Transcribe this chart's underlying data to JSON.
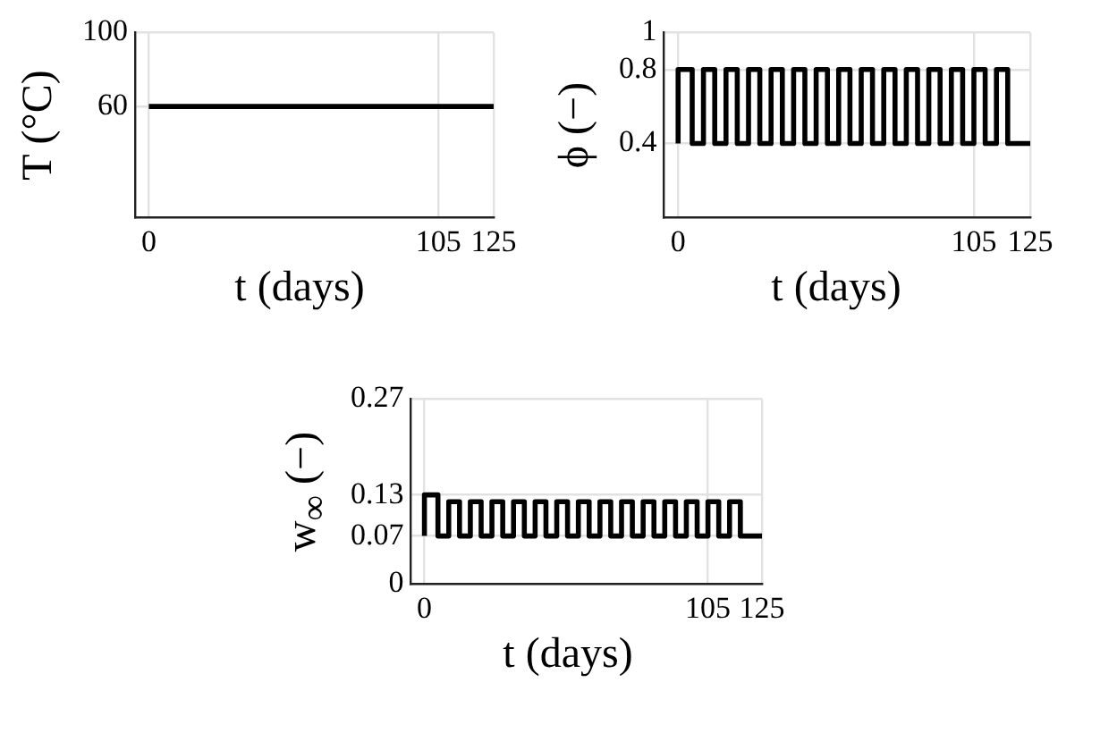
{
  "chart_data": [
    {
      "type": "line",
      "xlabel": "t (days)",
      "ylabel": "T (°C)",
      "x": [
        0,
        125
      ],
      "series": [
        {
          "color": "#000000",
          "values": [
            60,
            60
          ]
        }
      ],
      "xlim": [
        -5,
        125
      ],
      "xticks": [
        0,
        105,
        125
      ],
      "ylim": [
        0,
        100
      ],
      "yticks": [
        60,
        100
      ],
      "grid": true,
      "legend": false
    },
    {
      "type": "step",
      "xlabel": "t (days)",
      "ylabel": "ϕ (−)",
      "x": [
        0,
        5,
        9,
        13,
        17,
        21,
        25,
        29,
        33,
        37,
        41,
        45,
        49,
        53,
        57,
        61,
        65,
        69,
        73,
        77,
        81,
        85,
        89,
        93,
        97,
        101,
        105,
        109,
        113,
        117,
        121,
        125
      ],
      "series": [
        {
          "color": "#000000",
          "values": [
            0.4,
            0.8,
            0.4,
            0.8,
            0.4,
            0.8,
            0.4,
            0.8,
            0.4,
            0.8,
            0.4,
            0.8,
            0.4,
            0.8,
            0.4,
            0.8,
            0.4,
            0.8,
            0.4,
            0.8,
            0.4,
            0.8,
            0.4,
            0.8,
            0.4,
            0.8,
            0.4,
            0.8,
            0.4,
            0.8,
            0.4,
            0.4
          ]
        }
      ],
      "xlim": [
        -5,
        125
      ],
      "xticks": [
        0,
        105,
        125
      ],
      "ylim": [
        0,
        1
      ],
      "yticks": [
        0.4,
        0.8,
        1
      ],
      "grid": true,
      "legend": false
    },
    {
      "type": "step",
      "xlabel": "t (days)",
      "ylabel": "w$_{∞}$ (−)",
      "x": [
        0,
        5,
        9,
        13,
        17,
        21,
        25,
        29,
        33,
        37,
        41,
        45,
        49,
        53,
        57,
        61,
        65,
        69,
        73,
        77,
        81,
        85,
        89,
        93,
        97,
        101,
        105,
        109,
        113,
        117,
        121,
        125
      ],
      "series": [
        {
          "color": "#000000",
          "values": [
            0.07,
            0.13,
            0.07,
            0.12,
            0.07,
            0.12,
            0.07,
            0.12,
            0.07,
            0.12,
            0.07,
            0.12,
            0.07,
            0.12,
            0.07,
            0.12,
            0.07,
            0.12,
            0.07,
            0.12,
            0.07,
            0.12,
            0.07,
            0.12,
            0.07,
            0.12,
            0.07,
            0.12,
            0.07,
            0.12,
            0.07,
            0.07
          ]
        }
      ],
      "xlim": [
        -5,
        125
      ],
      "xticks": [
        0,
        105,
        125
      ],
      "ylim": [
        0,
        0.27
      ],
      "yticks": [
        0,
        0.07,
        0.13,
        0.27
      ],
      "grid": true,
      "legend": false
    }
  ]
}
